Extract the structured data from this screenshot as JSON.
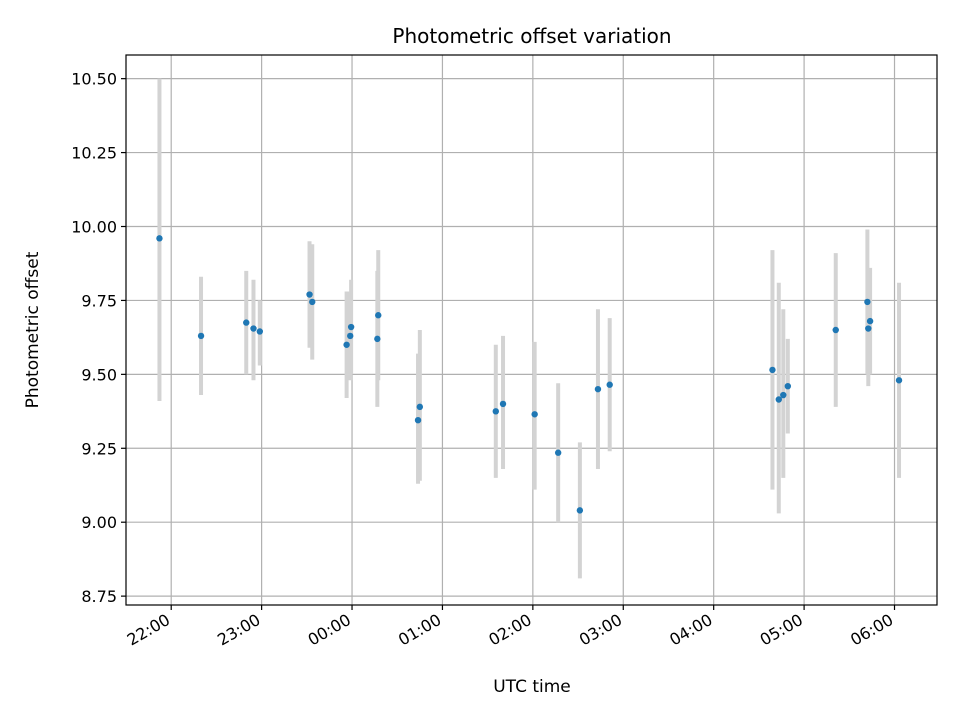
{
  "chart_data": {
    "type": "scatter",
    "title": "Photometric offset variation",
    "xlabel": "UTC time",
    "ylabel": "Photometric offset",
    "x_tick_labels": [
      "22:00",
      "23:00",
      "00:00",
      "01:00",
      "02:00",
      "03:00",
      "04:00",
      "05:00",
      "06:00"
    ],
    "x_ticks_hours": [
      22,
      23,
      24,
      25,
      26,
      27,
      28,
      29,
      30
    ],
    "xlim_hours": [
      21.5,
      30.47
    ],
    "y_tick_labels": [
      "8.75",
      "9.00",
      "9.25",
      "9.50",
      "9.75",
      "10.00",
      "10.25",
      "10.50"
    ],
    "y_ticks": [
      8.75,
      9.0,
      9.25,
      9.5,
      9.75,
      10.0,
      10.25,
      10.5
    ],
    "ylim": [
      8.72,
      10.58
    ],
    "grid": true,
    "marker_color": "#1f77b4",
    "errorbar_color": "#d3d3d3",
    "points": [
      {
        "t": 21.87,
        "y": 9.96,
        "lo": 9.41,
        "hi": 10.5
      },
      {
        "t": 22.33,
        "y": 9.63,
        "lo": 9.43,
        "hi": 9.83
      },
      {
        "t": 22.83,
        "y": 9.675,
        "lo": 9.5,
        "hi": 9.85
      },
      {
        "t": 22.91,
        "y": 9.655,
        "lo": 9.48,
        "hi": 9.82
      },
      {
        "t": 22.98,
        "y": 9.645,
        "lo": 9.53,
        "hi": 9.75
      },
      {
        "t": 23.53,
        "y": 9.77,
        "lo": 9.59,
        "hi": 9.95
      },
      {
        "t": 23.56,
        "y": 9.745,
        "lo": 9.55,
        "hi": 9.94
      },
      {
        "t": 23.94,
        "y": 9.6,
        "lo": 9.42,
        "hi": 9.78
      },
      {
        "t": 23.98,
        "y": 9.63,
        "lo": 9.48,
        "hi": 9.78
      },
      {
        "t": 23.99,
        "y": 9.66,
        "lo": 9.5,
        "hi": 9.82
      },
      {
        "t": 24.29,
        "y": 9.7,
        "lo": 9.48,
        "hi": 9.92
      },
      {
        "t": 24.28,
        "y": 9.62,
        "lo": 9.39,
        "hi": 9.85
      },
      {
        "t": 24.73,
        "y": 9.345,
        "lo": 9.13,
        "hi": 9.57
      },
      {
        "t": 24.75,
        "y": 9.39,
        "lo": 9.14,
        "hi": 9.65
      },
      {
        "t": 25.59,
        "y": 9.375,
        "lo": 9.15,
        "hi": 9.6
      },
      {
        "t": 25.67,
        "y": 9.4,
        "lo": 9.18,
        "hi": 9.63
      },
      {
        "t": 26.02,
        "y": 9.365,
        "lo": 9.11,
        "hi": 9.61
      },
      {
        "t": 26.28,
        "y": 9.235,
        "lo": 9.0,
        "hi": 9.47
      },
      {
        "t": 26.52,
        "y": 9.04,
        "lo": 8.81,
        "hi": 9.27
      },
      {
        "t": 26.72,
        "y": 9.45,
        "lo": 9.18,
        "hi": 9.72
      },
      {
        "t": 26.85,
        "y": 9.465,
        "lo": 9.24,
        "hi": 9.69
      },
      {
        "t": 28.65,
        "y": 9.515,
        "lo": 9.11,
        "hi": 9.92
      },
      {
        "t": 28.72,
        "y": 9.415,
        "lo": 9.03,
        "hi": 9.81
      },
      {
        "t": 28.77,
        "y": 9.43,
        "lo": 9.15,
        "hi": 9.72
      },
      {
        "t": 28.82,
        "y": 9.46,
        "lo": 9.3,
        "hi": 9.62
      },
      {
        "t": 29.35,
        "y": 9.65,
        "lo": 9.39,
        "hi": 9.91
      },
      {
        "t": 29.7,
        "y": 9.745,
        "lo": 9.5,
        "hi": 9.99
      },
      {
        "t": 29.71,
        "y": 9.655,
        "lo": 9.46,
        "hi": 9.85
      },
      {
        "t": 29.73,
        "y": 9.68,
        "lo": 9.5,
        "hi": 9.86
      },
      {
        "t": 30.05,
        "y": 9.48,
        "lo": 9.15,
        "hi": 9.81
      }
    ]
  }
}
